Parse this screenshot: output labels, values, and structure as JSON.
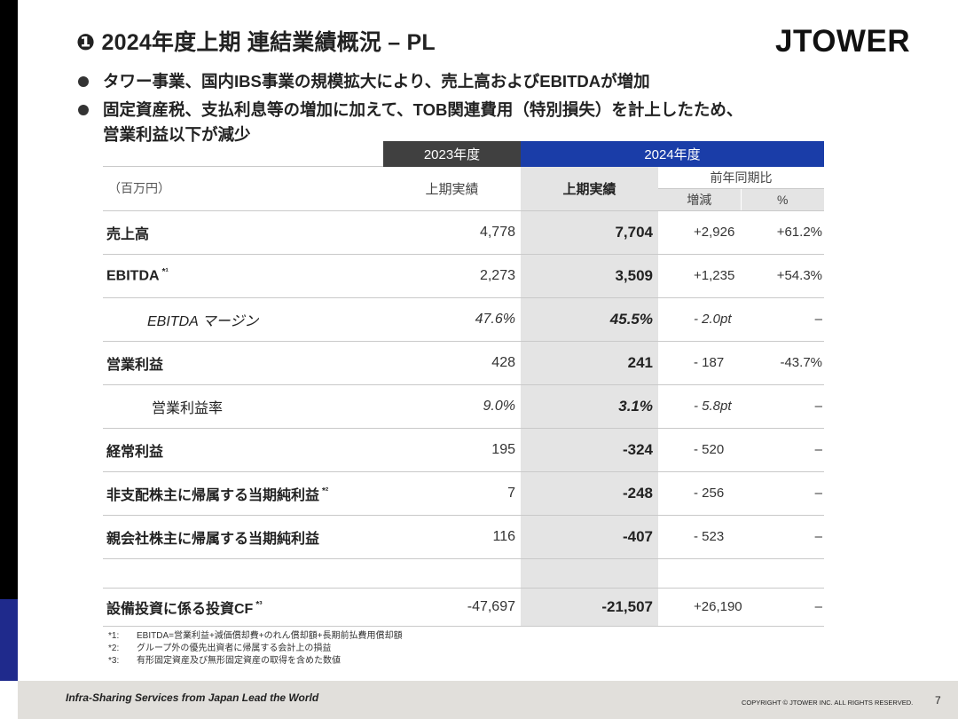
{
  "title": "❶ 2024年度上期 連結業績概況 – PL",
  "logo": "JTOWER",
  "bullets": [
    "タワー事業、国内IBS事業の規模拡大により、売上高およびEBITDAが増加",
    "固定資産税、支払利息等の増加に加えて、TOB関連費用（特別損失）を計上したため、",
    "営業利益以下が減少"
  ],
  "table": {
    "col_2023": "2023年度",
    "col_2024": "2024年度",
    "unit": "（百万円）",
    "h_2023_actual": "上期実績",
    "h_2024_actual": "上期実績",
    "h_yoy": "前年同期比",
    "h_diff": "増減",
    "h_pct": "%",
    "rows": [
      {
        "label": "売上高",
        "v2023": "4,778",
        "v2024": "7,704",
        "diff": "+2,926",
        "pct": "+61.2%"
      },
      {
        "label": "EBITDA",
        "note": "*¹",
        "v2023": "2,273",
        "v2024": "3,509",
        "diff": "+1,235",
        "pct": "+54.3%"
      },
      {
        "label": "EBITDA マージン",
        "v2023": "47.6%",
        "v2024": "45.5%",
        "diff": "- 2.0pt",
        "pct": "–"
      },
      {
        "label": "営業利益",
        "v2023": "428",
        "v2024": "241",
        "diff": "- 187",
        "pct": "-43.7%"
      },
      {
        "label": "営業利益率",
        "v2023": "9.0%",
        "v2024": "3.1%",
        "diff": "- 5.8pt",
        "pct": "–"
      },
      {
        "label": "経常利益",
        "v2023": "195",
        "v2024": "-324",
        "diff": "- 520",
        "pct": "–"
      },
      {
        "label": "非支配株主に帰属する当期純利益",
        "note": "*²",
        "v2023": "7",
        "v2024": "-248",
        "diff": "- 256",
        "pct": "–"
      },
      {
        "label": "親会社株主に帰属する当期純利益",
        "v2023": "116",
        "v2024": "-407",
        "diff": "- 523",
        "pct": "–"
      },
      {
        "label": "設備投資に係る投資CF",
        "note": "*³",
        "v2023": "-47,697",
        "v2024": "-21,507",
        "diff": "+26,190",
        "pct": "–"
      }
    ]
  },
  "notes": [
    {
      "k": "*1:",
      "t": "EBITDA=営業利益+減価償却費+のれん償却額+長期前払費用償却額"
    },
    {
      "k": "*2:",
      "t": "グループ外の優先出資者に帰属する会計上の損益"
    },
    {
      "k": "*3:",
      "t": "有形固定資産及び無形固定資産の取得を含めた数値"
    }
  ],
  "footer": {
    "tagline": "Infra-Sharing Services from Japan Lead the World",
    "copyright": "COPYRIGHT © JTOWER INC. ALL RIGHTS RESERVED.",
    "page": "7"
  },
  "colors": {
    "accent_blue": "#1a3da8",
    "dark_header": "#404040",
    "highlight": "#e4e4e4",
    "footer_bg": "#e1dfdb"
  }
}
